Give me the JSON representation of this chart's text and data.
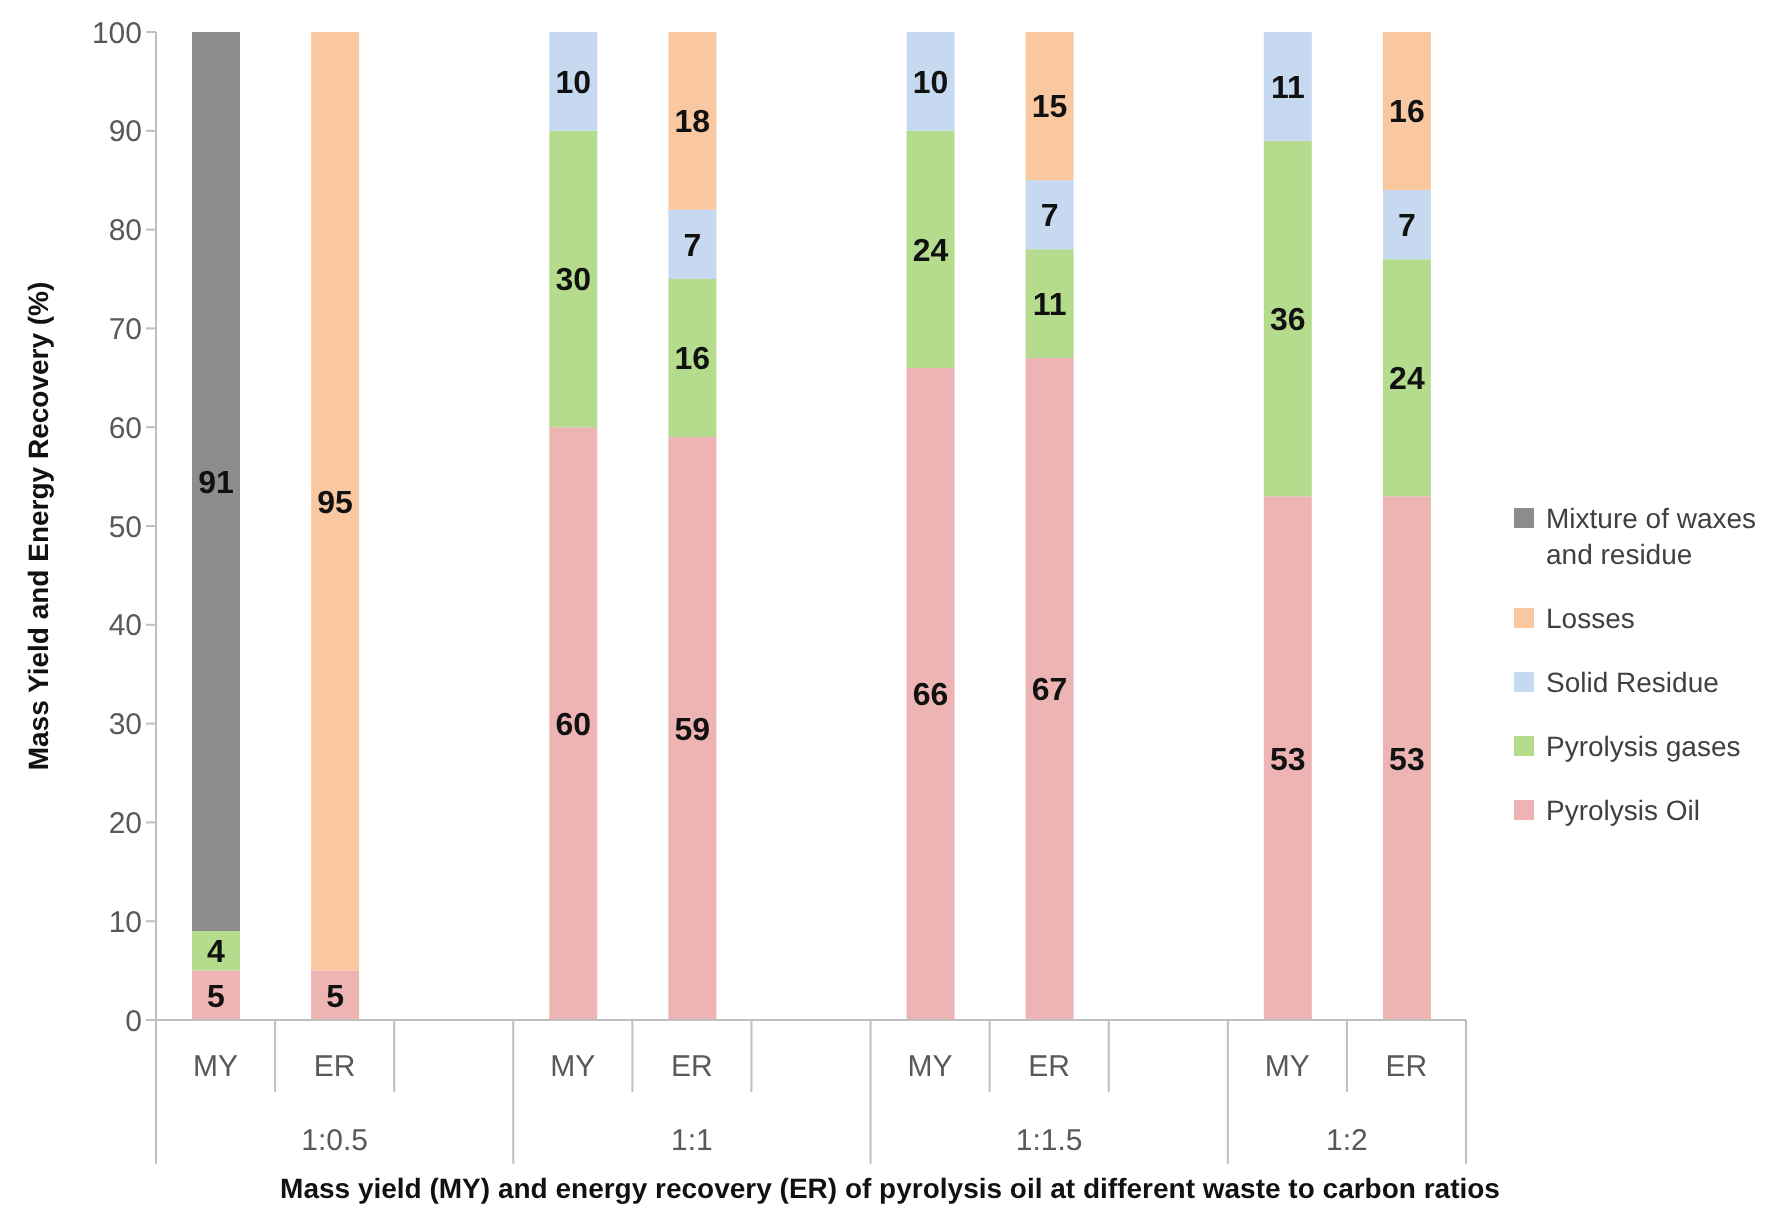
{
  "chart_data": {
    "type": "bar",
    "stacked": true,
    "ylabel": "Mass Yield and Energy Recovery (%)",
    "xlabel": "Mass yield (MY) and energy recovery (ER) of pyrolysis oil at different waste to carbon ratios",
    "categories": [
      "MY",
      "ER",
      null,
      "MY",
      "ER",
      null,
      "MY",
      "ER",
      null,
      "MY",
      "ER"
    ],
    "annotations": [
      "1:0.5",
      "1:1",
      "1:1.5",
      "1:2"
    ],
    "series": [
      {
        "name": "Pyrolysis Oil",
        "color": "#eeb4b4",
        "values": [
          5,
          5,
          null,
          60,
          59,
          null,
          66,
          67,
          null,
          53,
          53
        ]
      },
      {
        "name": "Pyrolysis gases",
        "color": "#b4dc8c",
        "values": [
          4,
          null,
          null,
          30,
          16,
          null,
          24,
          11,
          null,
          36,
          24
        ]
      },
      {
        "name": "Solid Residue",
        "color": "#c6d9f0",
        "values": [
          null,
          null,
          null,
          10,
          7,
          null,
          10,
          7,
          null,
          11,
          7
        ]
      },
      {
        "name": "Losses",
        "color": "#f9c8a0",
        "values": [
          null,
          95,
          null,
          null,
          18,
          null,
          null,
          15,
          null,
          null,
          16
        ]
      },
      {
        "name": "Mixture of waxes and residue",
        "color": "#8c8c8c",
        "values": [
          91,
          null,
          null,
          null,
          null,
          null,
          null,
          null,
          null,
          null,
          null
        ]
      }
    ],
    "ylim": [
      0,
      100
    ],
    "yticks": [
      0,
      10,
      20,
      30,
      40,
      50,
      60,
      70,
      80,
      90,
      100
    ],
    "data_labels": true,
    "legend": "right"
  }
}
